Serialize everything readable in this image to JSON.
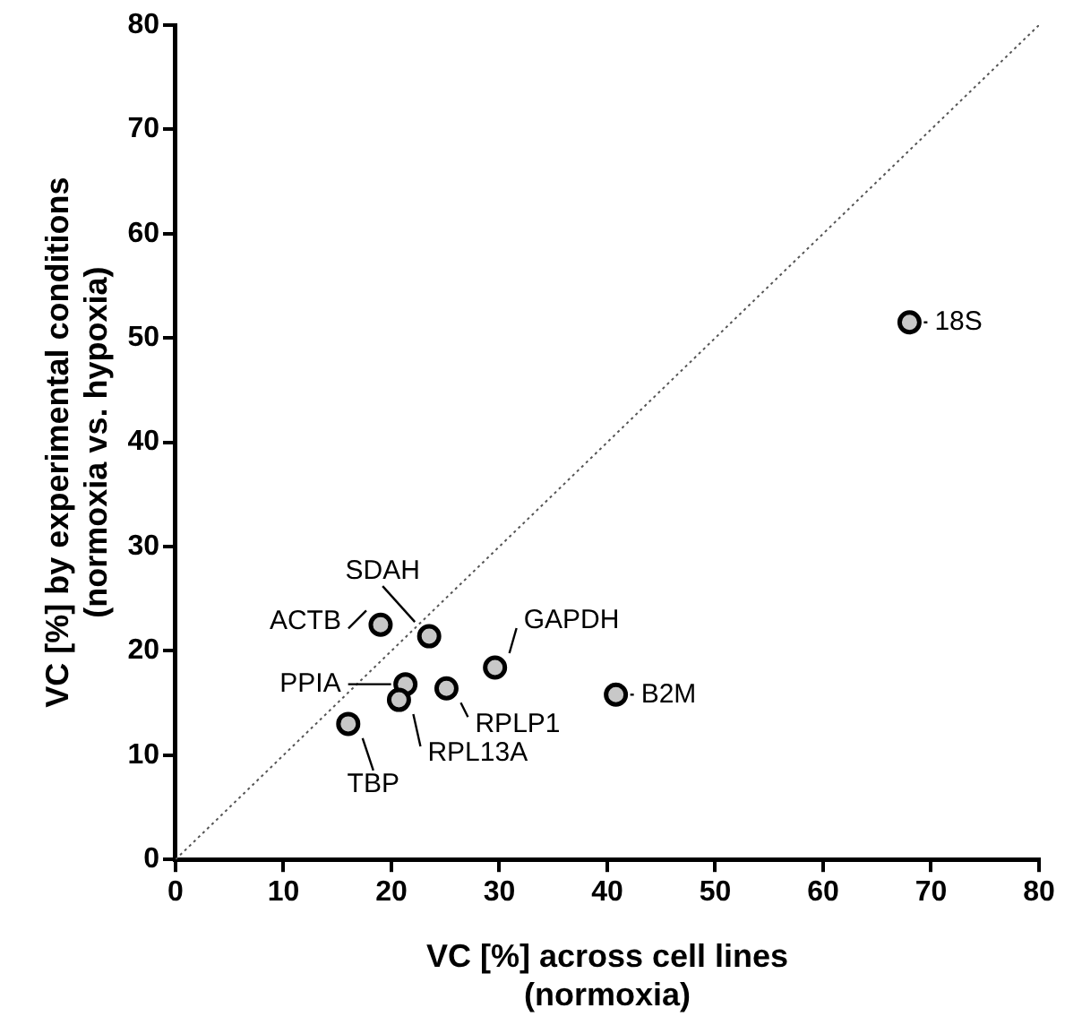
{
  "chart_data": {
    "type": "scatter",
    "xlabel": "VC [%] across cell lines\n(normoxia)",
    "ylabel": "VC [%] by experimental conditions\n(normoxia vs. hypoxia)",
    "xlim": [
      0,
      80
    ],
    "xticks": [
      0,
      10,
      20,
      30,
      40,
      50,
      60,
      70,
      80
    ],
    "ylim": [
      0,
      80
    ],
    "yticks": [
      0,
      10,
      20,
      30,
      40,
      50,
      60,
      70,
      80
    ],
    "grid": false,
    "legend": false,
    "marker": "circle",
    "series": [
      {
        "color": "#c8c8c8",
        "x": [
          19.0,
          23.5,
          29.6,
          21.3,
          25.1,
          20.7,
          40.8,
          16.0,
          68.0
        ],
        "values": [
          22.5,
          21.4,
          18.4,
          16.8,
          16.4,
          15.3,
          15.8,
          13.0,
          51.5
        ]
      },
      {
        "type": "line",
        "color": "#555555",
        "line_style": "dotted",
        "marker": "none",
        "x": [
          0,
          80
        ],
        "values": [
          0,
          80
        ]
      }
    ],
    "annotations": [
      {
        "text": "ACTB",
        "x": 19.0,
        "y": 22.5
      },
      {
        "text": "SDAH",
        "x": 23.5,
        "y": 21.4
      },
      {
        "text": "GAPDH",
        "x": 29.6,
        "y": 18.4
      },
      {
        "text": "PPIA",
        "x": 21.3,
        "y": 16.8
      },
      {
        "text": "RPLP1",
        "x": 25.1,
        "y": 16.4
      },
      {
        "text": "RPL13A",
        "x": 20.7,
        "y": 15.3
      },
      {
        "text": "B2M",
        "x": 40.8,
        "y": 15.8
      },
      {
        "text": "TBP",
        "x": 16.0,
        "y": 13.0
      },
      {
        "text": "18S",
        "x": 68.0,
        "y": 51.5
      }
    ]
  }
}
